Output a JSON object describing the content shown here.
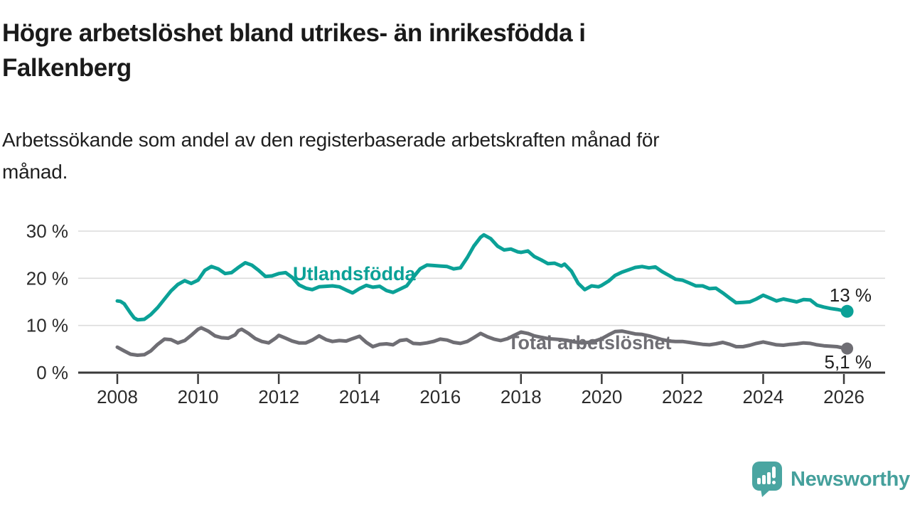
{
  "header": {
    "title_line1": "Högre arbetslöshet bland utrikes- än inrikesfödda i",
    "title_line2": "Falkenberg",
    "subtitle_line1": "Arbetssökande som andel av den registerbaserade arbetskraften månad för",
    "subtitle_line2": "månad."
  },
  "chart_data": {
    "type": "line",
    "title": "",
    "xlabel": "",
    "ylabel": "",
    "x_range": [
      2007.3,
      2027.0
    ],
    "y_range": [
      0,
      30
    ],
    "grid": "horizontal",
    "x_ticks": [
      2008,
      2010,
      2012,
      2014,
      2016,
      2018,
      2020,
      2022,
      2024,
      2026
    ],
    "x_tick_labels": [
      "2008",
      "2010",
      "2012",
      "2014",
      "2016",
      "2018",
      "2020",
      "2022",
      "2024",
      "2026"
    ],
    "y_ticks": [
      0,
      10,
      20,
      30
    ],
    "y_tick_labels": [
      "0 %",
      "10 %",
      "20 %",
      "30 %"
    ],
    "series": [
      {
        "name": "Utlandsfödda",
        "color": "#0ba197",
        "end_label": "13 %",
        "points": [
          [
            2008.0,
            15.2
          ],
          [
            2008.08,
            15.1
          ],
          [
            2008.17,
            14.6
          ],
          [
            2008.33,
            12.6
          ],
          [
            2008.42,
            11.6
          ],
          [
            2008.5,
            11.2
          ],
          [
            2008.67,
            11.3
          ],
          [
            2008.83,
            12.3
          ],
          [
            2009.0,
            13.8
          ],
          [
            2009.17,
            15.6
          ],
          [
            2009.33,
            17.3
          ],
          [
            2009.5,
            18.7
          ],
          [
            2009.67,
            19.5
          ],
          [
            2009.83,
            18.9
          ],
          [
            2010.0,
            19.6
          ],
          [
            2010.17,
            21.7
          ],
          [
            2010.33,
            22.5
          ],
          [
            2010.5,
            22.0
          ],
          [
            2010.67,
            21.0
          ],
          [
            2010.83,
            21.2
          ],
          [
            2011.0,
            22.3
          ],
          [
            2011.17,
            23.3
          ],
          [
            2011.33,
            22.8
          ],
          [
            2011.5,
            21.7
          ],
          [
            2011.67,
            20.4
          ],
          [
            2011.83,
            20.5
          ],
          [
            2012.0,
            21.0
          ],
          [
            2012.17,
            21.2
          ],
          [
            2012.33,
            20.2
          ],
          [
            2012.5,
            18.6
          ],
          [
            2012.67,
            17.9
          ],
          [
            2012.83,
            17.6
          ],
          [
            2013.0,
            18.2
          ],
          [
            2013.17,
            18.3
          ],
          [
            2013.33,
            18.4
          ],
          [
            2013.5,
            18.2
          ],
          [
            2013.67,
            17.5
          ],
          [
            2013.83,
            16.9
          ],
          [
            2014.0,
            17.8
          ],
          [
            2014.17,
            18.5
          ],
          [
            2014.33,
            18.1
          ],
          [
            2014.5,
            18.3
          ],
          [
            2014.67,
            17.4
          ],
          [
            2014.83,
            17.0
          ],
          [
            2015.0,
            17.7
          ],
          [
            2015.17,
            18.4
          ],
          [
            2015.33,
            20.2
          ],
          [
            2015.5,
            22.0
          ],
          [
            2015.67,
            22.8
          ],
          [
            2015.83,
            22.7
          ],
          [
            2016.0,
            22.6
          ],
          [
            2016.17,
            22.5
          ],
          [
            2016.33,
            22.0
          ],
          [
            2016.5,
            22.2
          ],
          [
            2016.67,
            24.4
          ],
          [
            2016.83,
            26.8
          ],
          [
            2017.0,
            28.7
          ],
          [
            2017.08,
            29.2
          ],
          [
            2017.25,
            28.4
          ],
          [
            2017.42,
            26.8
          ],
          [
            2017.58,
            26.0
          ],
          [
            2017.75,
            26.2
          ],
          [
            2017.92,
            25.6
          ],
          [
            2018.0,
            25.5
          ],
          [
            2018.17,
            25.8
          ],
          [
            2018.33,
            24.6
          ],
          [
            2018.5,
            23.9
          ],
          [
            2018.67,
            23.1
          ],
          [
            2018.83,
            23.2
          ],
          [
            2019.0,
            22.6
          ],
          [
            2019.08,
            23.0
          ],
          [
            2019.25,
            21.5
          ],
          [
            2019.42,
            18.9
          ],
          [
            2019.58,
            17.6
          ],
          [
            2019.75,
            18.4
          ],
          [
            2019.92,
            18.2
          ],
          [
            2020.0,
            18.5
          ],
          [
            2020.17,
            19.4
          ],
          [
            2020.33,
            20.6
          ],
          [
            2020.5,
            21.3
          ],
          [
            2020.67,
            21.8
          ],
          [
            2020.83,
            22.3
          ],
          [
            2021.0,
            22.5
          ],
          [
            2021.17,
            22.2
          ],
          [
            2021.33,
            22.4
          ],
          [
            2021.5,
            21.4
          ],
          [
            2021.67,
            20.6
          ],
          [
            2021.83,
            19.8
          ],
          [
            2022.0,
            19.6
          ],
          [
            2022.17,
            19.0
          ],
          [
            2022.33,
            18.4
          ],
          [
            2022.5,
            18.4
          ],
          [
            2022.67,
            17.8
          ],
          [
            2022.83,
            17.9
          ],
          [
            2023.0,
            16.9
          ],
          [
            2023.17,
            15.8
          ],
          [
            2023.33,
            14.8
          ],
          [
            2023.5,
            14.9
          ],
          [
            2023.67,
            15.0
          ],
          [
            2023.83,
            15.6
          ],
          [
            2024.0,
            16.4
          ],
          [
            2024.17,
            15.8
          ],
          [
            2024.33,
            15.2
          ],
          [
            2024.5,
            15.6
          ],
          [
            2024.67,
            15.3
          ],
          [
            2024.83,
            15.0
          ],
          [
            2025.0,
            15.5
          ],
          [
            2025.17,
            15.4
          ],
          [
            2025.33,
            14.3
          ],
          [
            2025.5,
            13.9
          ],
          [
            2025.67,
            13.6
          ],
          [
            2025.83,
            13.4
          ],
          [
            2026.0,
            13.1
          ],
          [
            2026.08,
            13.0
          ]
        ]
      },
      {
        "name": "Total arbetslöshet",
        "color": "#6f6e74",
        "end_label": "5,1 %",
        "points": [
          [
            2008.0,
            5.4
          ],
          [
            2008.17,
            4.6
          ],
          [
            2008.33,
            3.9
          ],
          [
            2008.5,
            3.7
          ],
          [
            2008.67,
            3.8
          ],
          [
            2008.83,
            4.6
          ],
          [
            2009.0,
            6.0
          ],
          [
            2009.17,
            7.1
          ],
          [
            2009.33,
            7.0
          ],
          [
            2009.5,
            6.3
          ],
          [
            2009.67,
            6.8
          ],
          [
            2009.83,
            7.9
          ],
          [
            2010.0,
            9.2
          ],
          [
            2010.08,
            9.5
          ],
          [
            2010.25,
            8.8
          ],
          [
            2010.42,
            7.8
          ],
          [
            2010.58,
            7.4
          ],
          [
            2010.75,
            7.3
          ],
          [
            2010.92,
            8.0
          ],
          [
            2011.0,
            8.9
          ],
          [
            2011.08,
            9.2
          ],
          [
            2011.25,
            8.3
          ],
          [
            2011.42,
            7.2
          ],
          [
            2011.58,
            6.6
          ],
          [
            2011.75,
            6.3
          ],
          [
            2011.92,
            7.3
          ],
          [
            2012.0,
            7.9
          ],
          [
            2012.17,
            7.3
          ],
          [
            2012.33,
            6.7
          ],
          [
            2012.5,
            6.3
          ],
          [
            2012.67,
            6.3
          ],
          [
            2012.83,
            6.9
          ],
          [
            2013.0,
            7.8
          ],
          [
            2013.17,
            7.0
          ],
          [
            2013.33,
            6.6
          ],
          [
            2013.5,
            6.8
          ],
          [
            2013.67,
            6.7
          ],
          [
            2013.83,
            7.2
          ],
          [
            2014.0,
            7.7
          ],
          [
            2014.17,
            6.4
          ],
          [
            2014.33,
            5.5
          ],
          [
            2014.5,
            6.0
          ],
          [
            2014.67,
            6.1
          ],
          [
            2014.83,
            5.9
          ],
          [
            2015.0,
            6.8
          ],
          [
            2015.17,
            7.0
          ],
          [
            2015.33,
            6.2
          ],
          [
            2015.5,
            6.1
          ],
          [
            2015.67,
            6.3
          ],
          [
            2015.83,
            6.6
          ],
          [
            2016.0,
            7.1
          ],
          [
            2016.17,
            6.9
          ],
          [
            2016.33,
            6.4
          ],
          [
            2016.5,
            6.2
          ],
          [
            2016.67,
            6.6
          ],
          [
            2016.83,
            7.4
          ],
          [
            2017.0,
            8.3
          ],
          [
            2017.17,
            7.6
          ],
          [
            2017.33,
            7.1
          ],
          [
            2017.5,
            6.8
          ],
          [
            2017.67,
            7.2
          ],
          [
            2017.83,
            7.9
          ],
          [
            2018.0,
            8.6
          ],
          [
            2018.17,
            8.3
          ],
          [
            2018.33,
            7.8
          ],
          [
            2018.5,
            7.5
          ],
          [
            2018.67,
            7.2
          ],
          [
            2018.83,
            7.1
          ],
          [
            2019.0,
            7.0
          ],
          [
            2019.17,
            6.8
          ],
          [
            2019.33,
            6.5
          ],
          [
            2019.5,
            6.3
          ],
          [
            2019.67,
            6.4
          ],
          [
            2019.83,
            6.7
          ],
          [
            2020.0,
            7.2
          ],
          [
            2020.17,
            8.0
          ],
          [
            2020.33,
            8.7
          ],
          [
            2020.5,
            8.8
          ],
          [
            2020.67,
            8.5
          ],
          [
            2020.83,
            8.2
          ],
          [
            2021.0,
            8.1
          ],
          [
            2021.17,
            7.8
          ],
          [
            2021.33,
            7.4
          ],
          [
            2021.5,
            7.0
          ],
          [
            2021.67,
            6.7
          ],
          [
            2021.83,
            6.6
          ],
          [
            2022.0,
            6.6
          ],
          [
            2022.17,
            6.4
          ],
          [
            2022.33,
            6.2
          ],
          [
            2022.5,
            6.0
          ],
          [
            2022.67,
            5.9
          ],
          [
            2022.83,
            6.1
          ],
          [
            2023.0,
            6.4
          ],
          [
            2023.17,
            6.0
          ],
          [
            2023.33,
            5.5
          ],
          [
            2023.5,
            5.5
          ],
          [
            2023.67,
            5.8
          ],
          [
            2023.83,
            6.2
          ],
          [
            2024.0,
            6.5
          ],
          [
            2024.17,
            6.2
          ],
          [
            2024.33,
            5.9
          ],
          [
            2024.5,
            5.8
          ],
          [
            2024.67,
            6.0
          ],
          [
            2024.83,
            6.1
          ],
          [
            2025.0,
            6.3
          ],
          [
            2025.17,
            6.2
          ],
          [
            2025.33,
            5.9
          ],
          [
            2025.5,
            5.7
          ],
          [
            2025.67,
            5.6
          ],
          [
            2025.83,
            5.5
          ],
          [
            2026.0,
            5.2
          ],
          [
            2026.08,
            5.1
          ]
        ]
      }
    ],
    "legend_position": "inline-labels"
  },
  "colors": {
    "series_foreign_born": "#0ba197",
    "series_total": "#6f6e74",
    "axis_line": "#3a3a3a",
    "grid_line": "#dcdcdc",
    "tick_text": "#2b2b2b",
    "value_label_text": "#1f1f1f",
    "brand_teal": "#4aa5a1"
  },
  "footer": {
    "brand": "Newsworthy",
    "logo_icon": "speech-bubble-bar-chart-exclamation"
  }
}
